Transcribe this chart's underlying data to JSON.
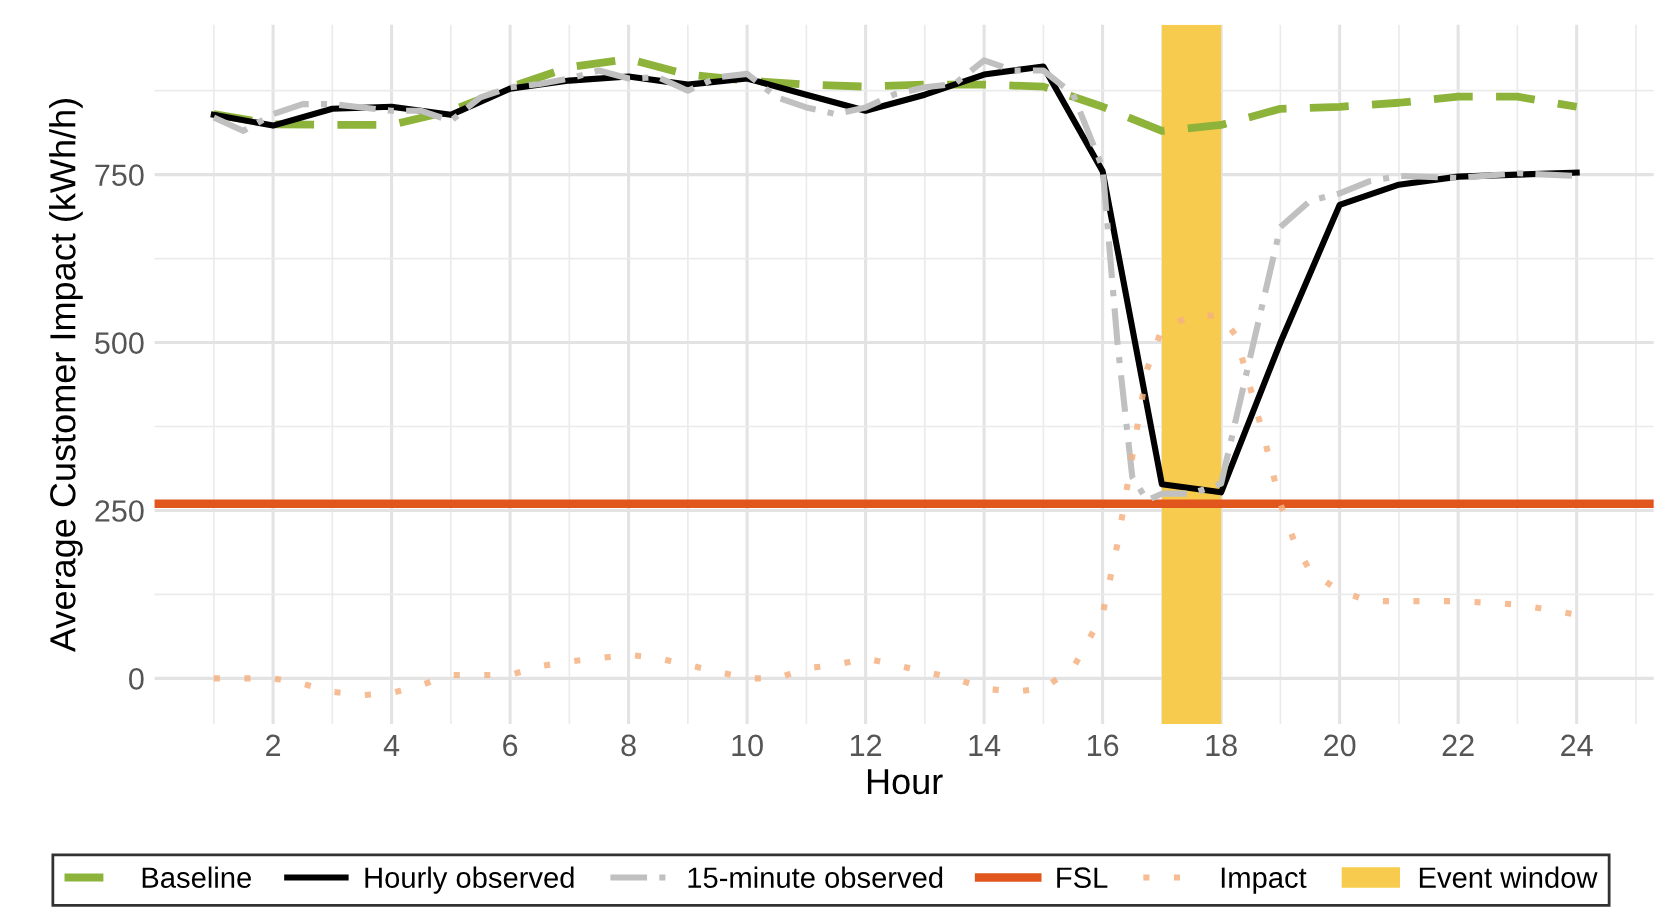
{
  "chart_data": {
    "type": "line",
    "xlabel": "Hour",
    "ylabel": "Average Customer Impact (kWh/h)",
    "xlim": [
      0,
      25.3
    ],
    "ylim": [
      -68,
      973
    ],
    "xticks": [
      2,
      4,
      6,
      8,
      10,
      12,
      14,
      16,
      18,
      20,
      22,
      24
    ],
    "yticks": [
      0,
      250,
      500,
      750
    ],
    "grid": true,
    "legend": "bottom",
    "series": [
      {
        "name": "Baseline",
        "color": "#8db33a",
        "line_style": "dashed",
        "x": [
          1,
          2,
          3,
          4,
          5,
          6,
          7,
          8,
          9,
          10,
          11,
          12,
          13,
          14,
          15,
          16,
          17,
          18,
          19,
          20,
          21,
          22,
          23,
          24
        ],
        "values": [
          840,
          825,
          824,
          824,
          845,
          880,
          910,
          922,
          899,
          890,
          884,
          881,
          884,
          884,
          881,
          851,
          815,
          824,
          848,
          851,
          857,
          866,
          866,
          851
        ]
      },
      {
        "name": "Hourly observed",
        "color": "#000000",
        "line_style": "solid",
        "x": [
          1,
          2,
          3,
          4,
          5,
          6,
          7,
          8,
          9,
          10,
          11,
          12,
          13,
          14,
          15,
          16,
          17,
          18,
          19,
          20,
          21,
          22,
          23,
          24
        ],
        "values": [
          839,
          823,
          848,
          851,
          839,
          878,
          890,
          896,
          884,
          893,
          869,
          845,
          869,
          899,
          911,
          755,
          289,
          277,
          500,
          705,
          735,
          747,
          750,
          753
        ]
      },
      {
        "name": "15-minute observed",
        "color": "#c0c0c0",
        "line_style": "dashdot",
        "x": [
          1,
          1.5,
          2,
          2.5,
          3,
          3.5,
          4,
          4.5,
          5,
          5.5,
          6,
          6.5,
          7,
          7.5,
          8,
          8.5,
          9,
          9.5,
          10,
          10.5,
          11,
          11.5,
          12,
          12.5,
          13,
          13.5,
          14,
          14.5,
          15,
          15.5,
          16,
          16.25,
          16.5,
          16.75,
          17,
          17.5,
          18,
          18.5,
          19,
          19.5,
          20,
          20.5,
          21,
          22,
          23,
          24
        ],
        "values": [
          835,
          815,
          840,
          855,
          855,
          850,
          845,
          845,
          830,
          865,
          880,
          885,
          893,
          905,
          893,
          895,
          875,
          895,
          900,
          865,
          850,
          840,
          850,
          870,
          880,
          885,
          920,
          905,
          905,
          870,
          760,
          500,
          300,
          265,
          275,
          275,
          290,
          482,
          672,
          711,
          722,
          740,
          748,
          745,
          752,
          748
        ]
      },
      {
        "name": "Impact",
        "color": "#f4b183",
        "line_style": "dotted",
        "x": [
          1,
          1.5,
          2,
          2.5,
          3,
          3.5,
          4,
          4.5,
          5,
          5.5,
          6,
          6.5,
          7,
          7.5,
          8,
          8.5,
          9,
          9.5,
          10,
          10.5,
          11,
          11.5,
          12,
          12.5,
          13,
          13.5,
          14,
          14.5,
          15,
          15.5,
          16,
          16.25,
          16.5,
          16.75,
          17,
          17.5,
          18,
          18.25,
          18.5,
          18.75,
          19,
          19.25,
          19.5,
          20,
          20.5,
          21,
          22,
          23,
          24
        ],
        "values": [
          0,
          0,
          0,
          -8,
          -20,
          -25,
          -22,
          -10,
          5,
          5,
          5,
          18,
          25,
          30,
          35,
          30,
          20,
          10,
          0,
          0,
          15,
          20,
          30,
          20,
          10,
          0,
          -15,
          -20,
          -15,
          15,
          95,
          200,
          330,
          460,
          520,
          540,
          540,
          510,
          430,
          350,
          260,
          200,
          160,
          130,
          115,
          115,
          115,
          110,
          95
        ]
      }
    ],
    "ref_lines": [
      {
        "axis": "y",
        "value": 260,
        "label": "FSL",
        "color": "#e0561c",
        "line_style": "solid"
      }
    ],
    "bands": [
      {
        "axis": "x",
        "from": 17,
        "to": 18,
        "label": "Event window",
        "color": "#f7cb4d"
      }
    ]
  }
}
